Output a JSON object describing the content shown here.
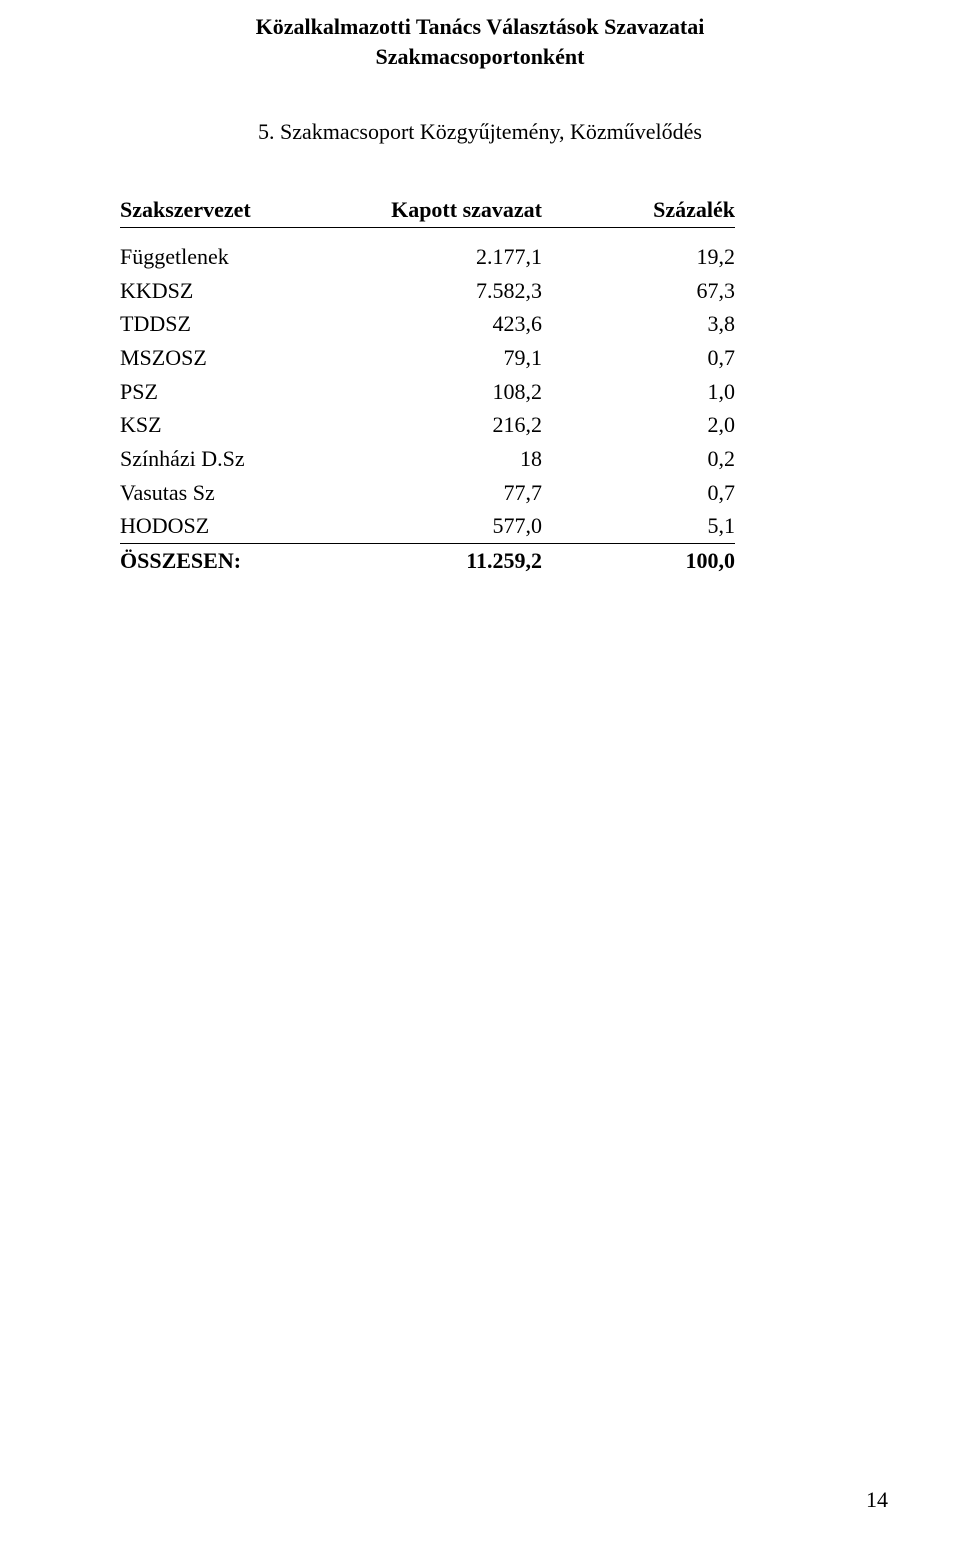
{
  "header": {
    "line1": "Közalkalmazotti Tanács Választások Szavazatai",
    "line2": "Szakmacsoportonként"
  },
  "subtitle": "5. Szakmacsoport Közgyűjtemény, Közművelődés",
  "table": {
    "columns": [
      "Szakszervezet",
      "Kapott szavazat",
      "Százalék"
    ],
    "rows": [
      {
        "name": "Függetlenek",
        "votes": "2.177,1",
        "pct": "19,2"
      },
      {
        "name": "KKDSZ",
        "votes": "7.582,3",
        "pct": "67,3"
      },
      {
        "name": "TDDSZ",
        "votes": "423,6",
        "pct": "3,8"
      },
      {
        "name": "MSZOSZ",
        "votes": "79,1",
        "pct": "0,7"
      },
      {
        "name": "PSZ",
        "votes": "108,2",
        "pct": "1,0"
      },
      {
        "name": "KSZ",
        "votes": "216,2",
        "pct": "2,0"
      },
      {
        "name": "Színházi D.Sz",
        "votes": "18",
        "pct": "0,2"
      },
      {
        "name": "Vasutas Sz",
        "votes": "77,7",
        "pct": "0,7"
      },
      {
        "name": "HODOSZ",
        "votes": "577,0",
        "pct": "5,1"
      }
    ],
    "total": {
      "name": "ÖSSZESEN:",
      "votes": "11.259,2",
      "pct": "100,0"
    }
  },
  "pageNumber": "14",
  "style": {
    "background_color": "#ffffff",
    "text_color": "#000000",
    "font_family": "Times New Roman",
    "header_fontsize_pt": 16,
    "body_fontsize_pt": 16
  }
}
